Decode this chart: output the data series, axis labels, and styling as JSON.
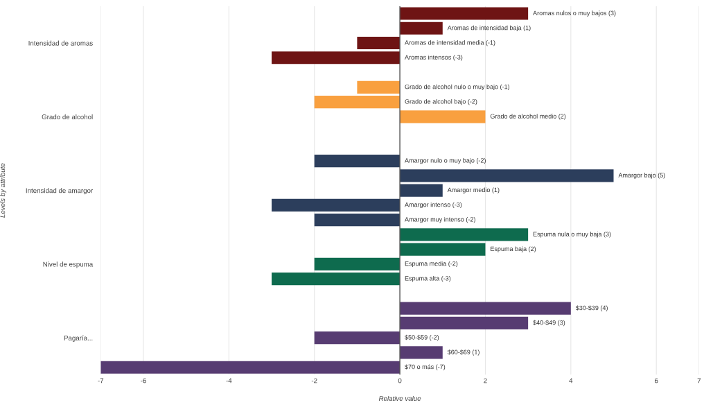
{
  "chart_data": {
    "type": "bar",
    "orientation": "horizontal",
    "xlabel": "Relative value",
    "ylabel": "Levels by attribute",
    "categories": [
      null,
      null,
      "Intensidad de aromas",
      null,
      null,
      null,
      null,
      "Grado de alcohol",
      null,
      null,
      null,
      null,
      "Intensidad de amargor",
      null,
      null,
      null,
      null,
      "Nivel de espuma",
      null,
      null,
      null,
      null,
      "Pagaría...",
      null,
      null
    ],
    "values": [
      3,
      1,
      -1,
      -3,
      null,
      -1,
      -2,
      2,
      null,
      null,
      -2,
      5,
      1,
      -3,
      -2,
      3,
      2,
      -2,
      -3,
      null,
      4,
      3,
      -2,
      1,
      -7
    ],
    "value_labels": [
      "Aromas nulos o muy bajos (3)",
      "Aromas de intensidad baja (1)",
      "Aromas de intensidad media (-1)",
      "Aromas intensos (-3)",
      null,
      "Grado de alcohol nulo o muy bajo (-1)",
      "Grado de alcohol bajo (-2)",
      "Grado de alcohol medio (2)",
      null,
      null,
      "Amargor nulo o muy bajo (-2)",
      "Amargor bajo (5)",
      "Amargor medio (1)",
      "Amargor intenso (-3)",
      "Amargor muy intenso (-2)",
      "Espuma nula o muy baja (3)",
      "Espuma baja (2)",
      "Espuma media (-2)",
      "Espuma alta (-3)",
      null,
      "$30-$39 (4)",
      "$40-$49 (3)",
      "$50-$59 (-2)",
      "$60-$69 (1)",
      "$70 o más (-7)"
    ],
    "colors": [
      "#6e1414",
      "#6e1414",
      "#6e1414",
      "#6e1414",
      "#6e1414",
      "#f9a03f",
      "#f9a03f",
      "#f9a03f",
      "#f9a03f",
      "#f9a03f",
      "#2c3e5c",
      "#2c3e5c",
      "#2c3e5c",
      "#2c3e5c",
      "#2c3e5c",
      "#0e6b4e",
      "#0e6b4e",
      "#0e6b4e",
      "#0e6b4e",
      "#0e6b4e",
      "#573c72",
      "#573c72",
      "#573c72",
      "#573c72",
      "#573c72"
    ],
    "xlim": [
      -7,
      7
    ],
    "xticks": [
      -7,
      -6,
      -4,
      -2,
      0,
      2,
      4,
      6,
      7
    ],
    "grid": "x",
    "ref_lines": [
      {
        "axis": "x",
        "value": 0,
        "color": "#555555"
      }
    ]
  }
}
